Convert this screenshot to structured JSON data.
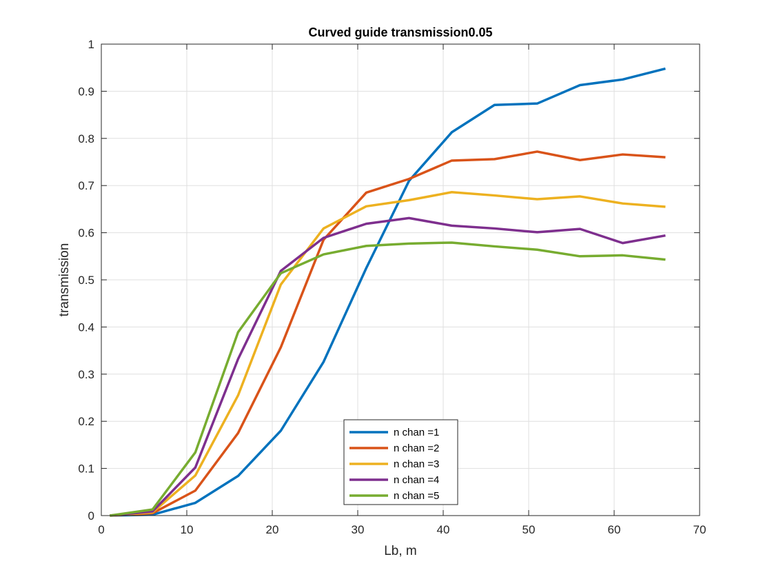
{
  "chart_data": {
    "type": "line",
    "title": "Curved guide transmission0.05",
    "xlabel": "Lb, m",
    "ylabel": "transmission",
    "xlim": [
      0,
      70
    ],
    "ylim": [
      0,
      1
    ],
    "xticks": [
      "0",
      "10",
      "20",
      "30",
      "40",
      "50",
      "60",
      "70"
    ],
    "yticks": [
      "0",
      "0.1",
      "0.2",
      "0.3",
      "0.4",
      "0.5",
      "0.6",
      "0.7",
      "0.8",
      "0.9",
      "1"
    ],
    "grid": true,
    "legend_position": "bottom-center",
    "x": [
      1,
      6,
      11,
      16,
      21,
      26,
      31,
      36,
      41,
      46,
      51,
      56,
      61,
      66
    ],
    "series": [
      {
        "name": "n chan =1",
        "color": "#0072BD",
        "values": [
          0,
          0.002,
          0.027,
          0.084,
          0.18,
          0.326,
          0.525,
          0.71,
          0.813,
          0.871,
          0.874,
          0.913,
          0.925,
          0.948
        ]
      },
      {
        "name": "n chan =2",
        "color": "#D95319",
        "values": [
          0,
          0.005,
          0.053,
          0.175,
          0.357,
          0.585,
          0.685,
          0.714,
          0.753,
          0.756,
          0.772,
          0.754,
          0.766,
          0.76
        ]
      },
      {
        "name": "n chan =3",
        "color": "#EDB120",
        "values": [
          0,
          0.007,
          0.085,
          0.255,
          0.49,
          0.609,
          0.656,
          0.669,
          0.686,
          0.679,
          0.671,
          0.677,
          0.662,
          0.655
        ]
      },
      {
        "name": "n chan =4",
        "color": "#7E2F8E",
        "values": [
          0,
          0.009,
          0.102,
          0.332,
          0.519,
          0.589,
          0.619,
          0.631,
          0.615,
          0.609,
          0.601,
          0.608,
          0.578,
          0.594
        ]
      },
      {
        "name": "n chan =5",
        "color": "#77AC30",
        "values": [
          0,
          0.013,
          0.134,
          0.389,
          0.514,
          0.554,
          0.572,
          0.577,
          0.579,
          0.571,
          0.564,
          0.55,
          0.552,
          0.543
        ]
      }
    ]
  }
}
